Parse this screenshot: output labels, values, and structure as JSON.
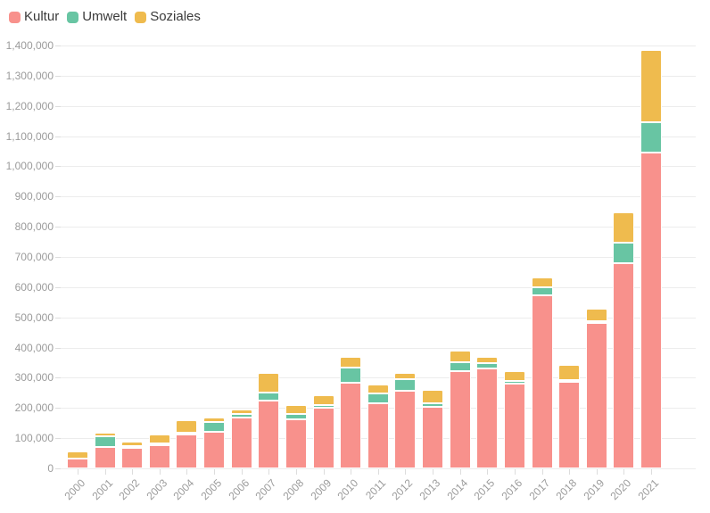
{
  "legend": {
    "items": [
      {
        "label": "Kultur",
        "color": "#f8918c"
      },
      {
        "label": "Umwelt",
        "color": "#68c5a3"
      },
      {
        "label": "Soziales",
        "color": "#efbb4e"
      }
    ]
  },
  "axes": {
    "y_tick_labels": [
      "0",
      "100,000",
      "200,000",
      "300,000",
      "400,000",
      "500,000",
      "600,000",
      "700,000",
      "800,000",
      "900,000",
      "1,000,000",
      "1,100,000",
      "1,200,000",
      "1,300,000",
      "1,400,000"
    ],
    "x_labels_rotation_deg": -45,
    "gridline_color": "#ececec",
    "tick_color": "#dddddd",
    "tick_text_color": "#9b9b9b"
  },
  "chart_data": {
    "type": "bar",
    "stacked": true,
    "title": "",
    "xlabel": "",
    "ylabel": "",
    "ylim": [
      0,
      1400000
    ],
    "ytick_step": 100000,
    "grid": "horizontal",
    "legend_position": "top-left",
    "categories": [
      "2000",
      "2001",
      "2002",
      "2003",
      "2004",
      "2005",
      "2006",
      "2007",
      "2008",
      "2009",
      "2010",
      "2011",
      "2012",
      "2013",
      "2014",
      "2015",
      "2016",
      "2017",
      "2018",
      "2019",
      "2020",
      "2021"
    ],
    "series": [
      {
        "name": "Kultur",
        "color": "#f8918c",
        "values": [
          33000,
          72000,
          67000,
          78000,
          113000,
          122000,
          167000,
          224000,
          163000,
          202000,
          283000,
          216000,
          258000,
          204000,
          322000,
          330000,
          280000,
          572000,
          288000,
          481000,
          678000,
          1045000
        ]
      },
      {
        "name": "Umwelt",
        "color": "#68c5a3",
        "values": [
          0,
          35000,
          8000,
          2000,
          2000,
          31000,
          12000,
          27000,
          17000,
          9000,
          50000,
          33000,
          36000,
          13000,
          29000,
          20000,
          10000,
          28000,
          3000,
          5000,
          70000,
          100000
        ]
      },
      {
        "name": "Soziales",
        "color": "#efbb4e",
        "values": [
          24000,
          11000,
          15000,
          27000,
          40000,
          14000,
          15000,
          64000,
          29000,
          32000,
          37000,
          28000,
          21000,
          44000,
          38000,
          19000,
          33000,
          32000,
          49000,
          43000,
          100000,
          240000
        ]
      }
    ]
  }
}
